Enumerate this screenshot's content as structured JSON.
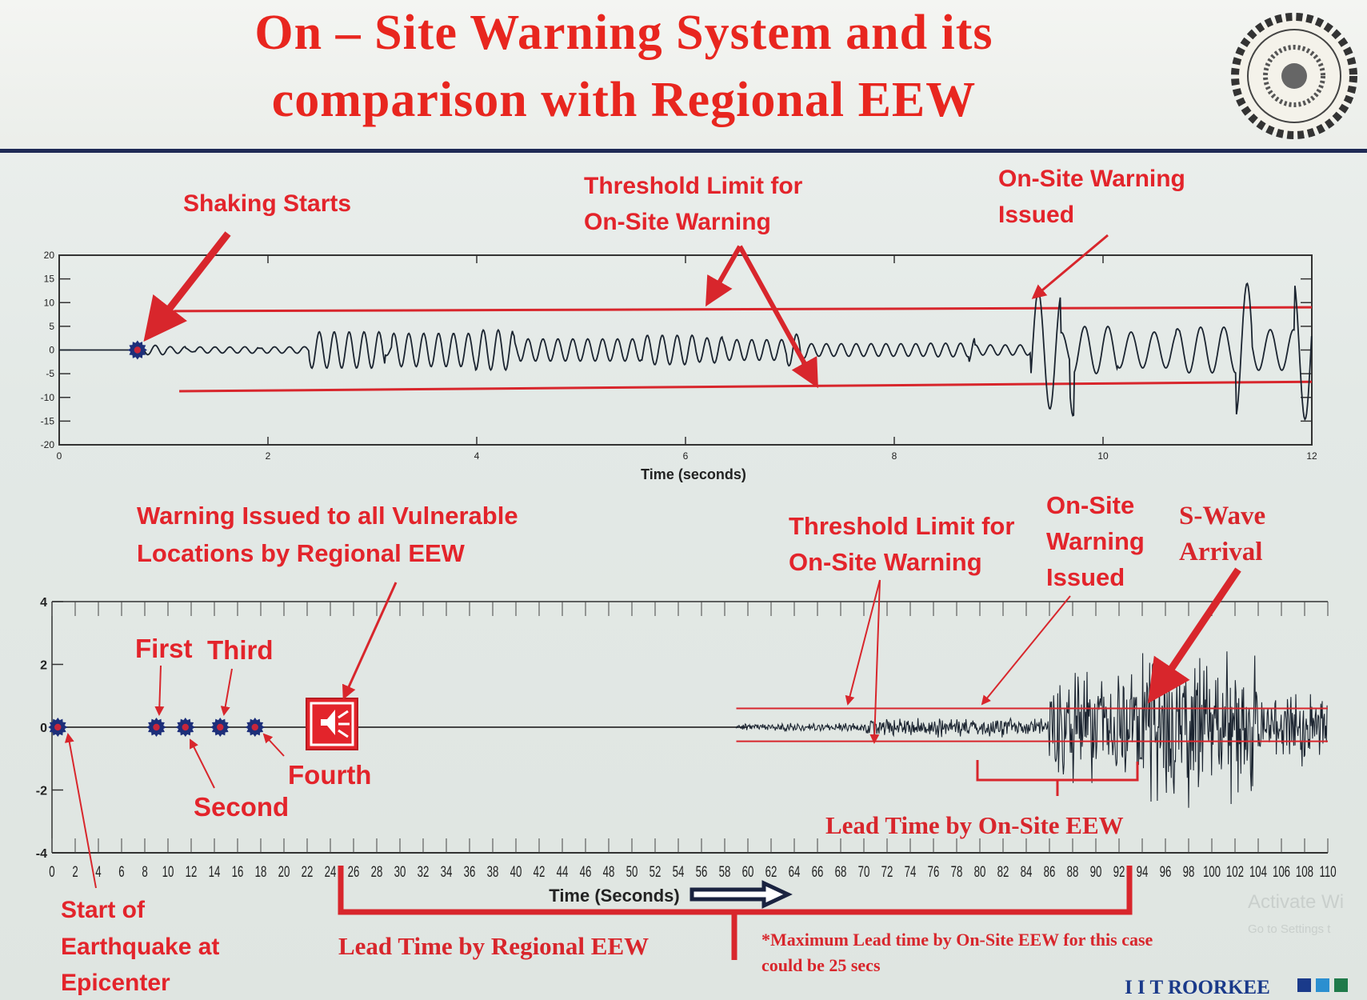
{
  "title": {
    "line1": "On – Site Warning System and its",
    "line2": "comparison with Regional EEW",
    "color": "#e8261f"
  },
  "logo": {
    "name": "iit-roorkee-emblem",
    "text": "Indian Institute of Technology Roorkee"
  },
  "footer": {
    "brand": "I I T ROORKEE",
    "brand_color": "#1a3a8a",
    "squares": [
      "#1a3a8a",
      "#2b8fd0",
      "#1f7a4a"
    ],
    "watermark_line1": "Activate Wi",
    "watermark_line2": "Go to Settings t"
  },
  "top_annotations": {
    "shaking_starts": "Shaking Starts",
    "threshold_line1": "Threshold Limit for",
    "threshold_line2": "On-Site Warning",
    "warning_line1": "On-Site Warning",
    "warning_line2": "Issued"
  },
  "bottom_annotations": {
    "regional_line1": "Warning Issued to all Vulnerable",
    "regional_line2": "Locations by Regional EEW",
    "first": "First",
    "second": "Second",
    "third": "Third",
    "fourth": "Fourth",
    "start_line1": "Start of",
    "start_line2": "Earthquake at",
    "start_line3": "Epicenter",
    "threshold_line1": "Threshold Limit for",
    "threshold_line2": "On-Site Warning",
    "onsite_line1": "On-Site",
    "onsite_line2": "Warning",
    "onsite_line3": "Issued",
    "swave_line1": "S-Wave",
    "swave_line2": "Arrival",
    "lead_onsite": "Lead Time by On-Site EEW",
    "lead_regional": "Lead Time by Regional EEW",
    "footnote_line1": "*Maximum Lead time by On-Site EEW for this case",
    "footnote_line2": "could be 25 secs"
  },
  "chart_data": [
    {
      "type": "line",
      "xlabel": "Time (seconds)",
      "ylabel": "",
      "xlim": [
        0,
        12
      ],
      "ylim": [
        -20,
        20
      ],
      "xticks": [
        0,
        2,
        4,
        6,
        8,
        10,
        12
      ],
      "yticks": [
        20,
        15,
        10,
        5,
        0,
        -5,
        -10,
        -15,
        -20
      ],
      "grid": false,
      "series_color": "#1b2430",
      "threshold_color": "#d8262c",
      "threshold_upper": {
        "x": [
          1.1,
          12
        ],
        "y": [
          8.2,
          9
        ]
      },
      "threshold_lower": {
        "x": [
          1.15,
          12
        ],
        "y": [
          -8.7,
          -6.7
        ]
      },
      "shaking_start": 0.75,
      "onsite_warning_time": 9.3
    },
    {
      "type": "line",
      "xlabel": "Time (Seconds)",
      "ylabel": "",
      "xlim": [
        0,
        110
      ],
      "ylim": [
        -4,
        4
      ],
      "xticks": [
        0,
        2,
        4,
        6,
        8,
        10,
        12,
        14,
        16,
        18,
        20,
        22,
        24,
        26,
        28,
        30,
        32,
        34,
        36,
        38,
        40,
        42,
        44,
        46,
        48,
        50,
        52,
        54,
        56,
        58,
        60,
        62,
        64,
        66,
        68,
        70,
        72,
        74,
        76,
        78,
        80,
        82,
        84,
        86,
        88,
        90,
        92,
        94,
        96,
        98,
        100,
        102,
        104,
        106,
        108,
        110
      ],
      "yticks": [
        4,
        2,
        0,
        -2,
        -4
      ],
      "grid": false,
      "series_color": "#1b2430",
      "threshold_color": "#d8262c",
      "threshold_upper": 0.6,
      "threshold_lower": -0.45,
      "threshold_start": 59,
      "station_markers": [
        0.5,
        9,
        11.5,
        14.5,
        17.5
      ],
      "regional_warning_time": 24,
      "onsite_warning_time": 80,
      "swave_arrival": 94,
      "lead_time_regional_range": [
        24,
        93
      ],
      "lead_time_onsite_range": [
        80,
        93
      ]
    }
  ]
}
